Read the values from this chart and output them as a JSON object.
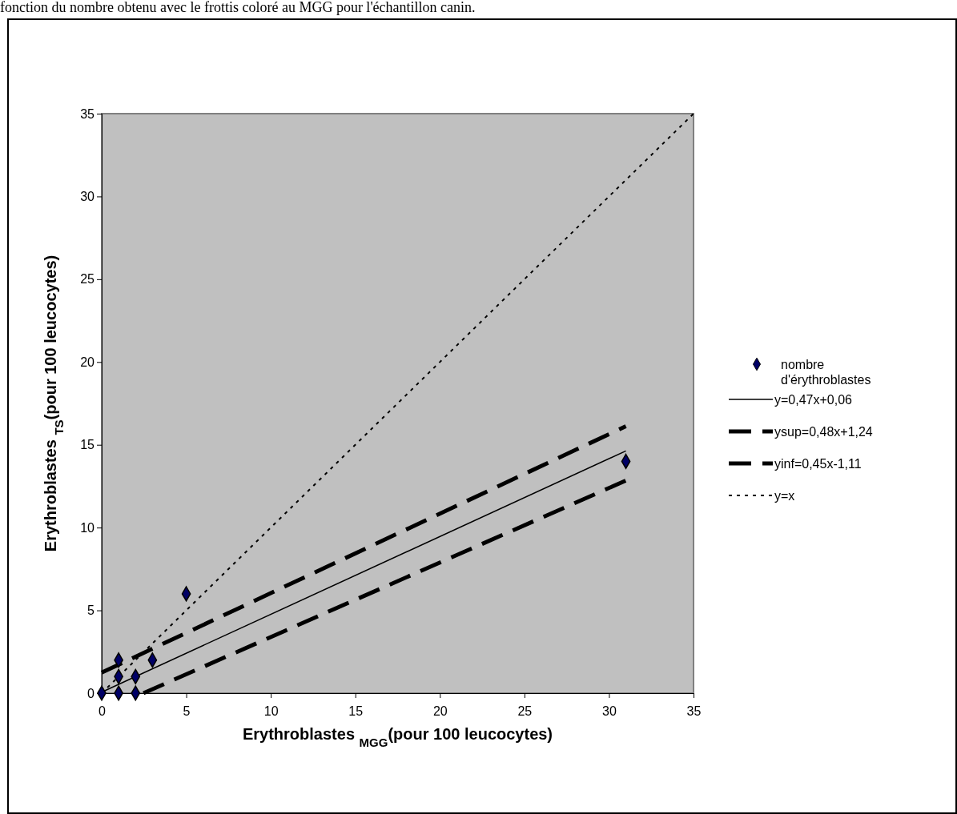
{
  "chart_data": {
    "type": "scatter",
    "xlabel": "Erythroblastes $_{MGG}$(pour 100 leucocytes)",
    "ylabel": "Erythroblastes $_{TS}$(pour 100 leucocytes)",
    "annotations": [
      "fonction du nombre obtenu avec le frottis coloré au MGG pour l'échantillon canin."
    ],
    "xlim": [
      0,
      35
    ],
    "ylim": [
      0,
      35
    ],
    "xticks": [
      0,
      5,
      10,
      15,
      20,
      25,
      30,
      35
    ],
    "yticks": [
      0,
      5,
      10,
      15,
      20,
      25,
      30,
      35
    ],
    "grid": false,
    "legend": "right",
    "series": [
      {
        "name": "nombre d'érythroblastes",
        "marker": "diamond",
        "color": "#000066",
        "x": [
          0,
          1,
          2,
          1,
          2,
          1,
          3,
          5,
          31
        ],
        "values": [
          0,
          0,
          0,
          1,
          1,
          2,
          2,
          6,
          14
        ]
      },
      {
        "name": "y=0,47x+0,06",
        "type": "line",
        "line_style": "solid",
        "color": "#000000",
        "x": [
          0,
          31
        ],
        "values": [
          0.06,
          14.63
        ]
      },
      {
        "name": "ysup=0,48x+1,24",
        "type": "line",
        "line_style": "dashed",
        "color": "#000000",
        "x": [
          0,
          31
        ],
        "values": [
          1.24,
          16.12
        ]
      },
      {
        "name": "yinf=0,45x-1,11",
        "type": "line",
        "line_style": "dashed",
        "color": "#000000",
        "x": [
          2.47,
          31
        ],
        "values": [
          0,
          12.84
        ]
      },
      {
        "name": "y=x",
        "type": "line",
        "line_style": "dotted",
        "color": "#000000",
        "x": [
          0,
          35
        ],
        "values": [
          0,
          35
        ]
      }
    ]
  }
}
